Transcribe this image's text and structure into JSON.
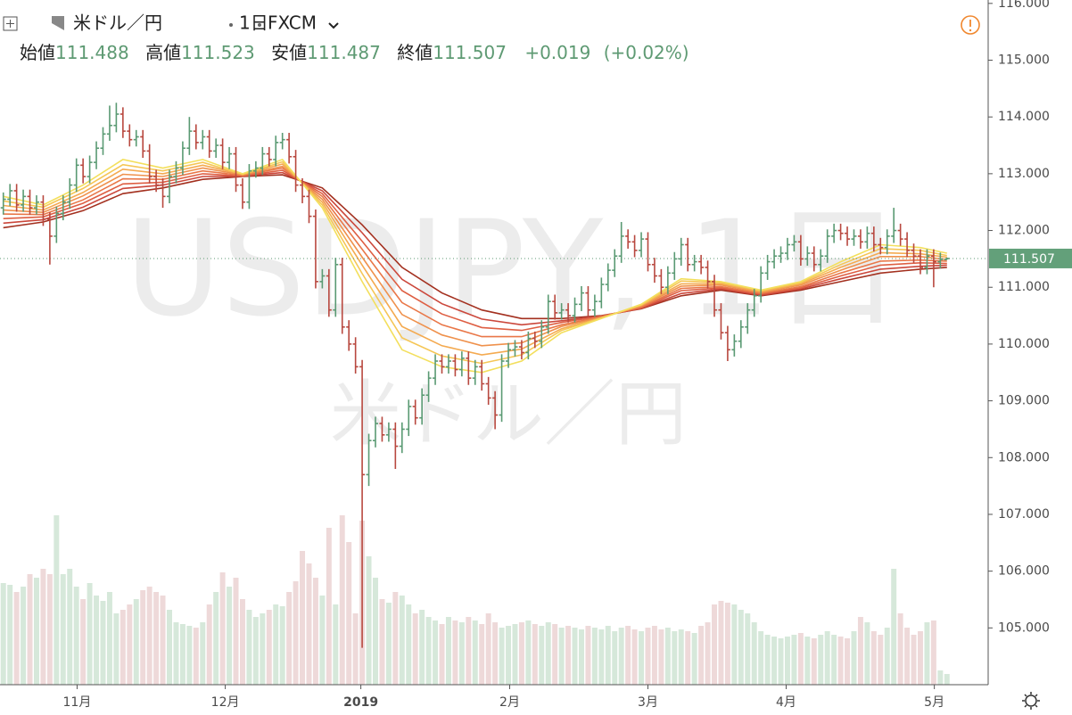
{
  "header": {
    "symbol": "米ドル／円",
    "interval": "1日",
    "exchange": "FXCM",
    "ohlc_labels": [
      "始値",
      "高値",
      "安値",
      "終値"
    ],
    "change": "+0.019",
    "change_pct": "(+0.02%)"
  },
  "watermark": {
    "main": "USDJPY, 1日",
    "sub": "米ドル／円"
  },
  "chart_data": {
    "type": "ohlc",
    "xlim": [
      -0.5,
      148.2
    ],
    "xticks": [
      {
        "value": 11.1,
        "label": "11月"
      },
      {
        "value": 33.4,
        "label": "12月"
      },
      {
        "value": 53.8,
        "label": "2019"
      },
      {
        "value": 76.2,
        "label": "2月"
      },
      {
        "value": 97,
        "label": "3月"
      },
      {
        "value": 117.8,
        "label": "4月"
      },
      {
        "value": 140.1,
        "label": "5月"
      }
    ],
    "ylim": [
      104.0,
      116.06
    ],
    "yticks": [
      {
        "value": 105,
        "label": "105.000"
      },
      {
        "value": 106,
        "label": "106.000"
      },
      {
        "value": 107,
        "label": "107.000"
      },
      {
        "value": 108,
        "label": "108.000"
      },
      {
        "value": 109,
        "label": "109.000"
      },
      {
        "value": 110,
        "label": "110.000"
      },
      {
        "value": 111,
        "label": "111.000"
      },
      {
        "value": 112,
        "label": "112.000"
      },
      {
        "value": 113,
        "label": "113.000"
      },
      {
        "value": 114,
        "label": "114.000"
      },
      {
        "value": 115,
        "label": "115.000"
      },
      {
        "value": 116,
        "label": "116.000"
      }
    ],
    "up_color": "#5a9a73",
    "down_color": "#b8483f",
    "vol_up_color": "#d6e8da",
    "vol_down_color": "#eed9d9",
    "open": [
      112.4,
      112.55,
      112.7,
      112.45,
      112.6,
      112.4,
      112.5,
      112.2,
      111.9,
      112.3,
      112.5,
      112.8,
      113.15,
      112.95,
      113.2,
      113.45,
      113.7,
      113.85,
      114.05,
      113.75,
      113.6,
      113.65,
      113.4,
      112.95,
      112.8,
      112.6,
      112.95,
      113.1,
      113.45,
      113.75,
      113.55,
      113.65,
      113.4,
      113.5,
      113.2,
      113.35,
      112.8,
      112.5,
      113.05,
      113.1,
      113.35,
      113.25,
      113.55,
      113.6,
      113.3,
      112.8,
      112.6,
      112.25,
      111.1,
      111.2,
      110.6,
      111.4,
      110.3,
      110.0,
      109.6,
      107.7,
      108.3,
      108.6,
      108.4,
      108.5,
      108.2,
      108.5,
      108.9,
      108.7,
      109.1,
      109.4,
      109.7,
      109.6,
      109.7,
      109.55,
      109.75,
      109.4,
      109.6,
      109.3,
      109.05,
      108.75,
      109.7,
      109.9,
      109.95,
      109.85,
      110.1,
      110.05,
      110.3,
      110.75,
      110.55,
      110.6,
      110.5,
      110.7,
      110.9,
      110.6,
      110.75,
      111.05,
      111.3,
      111.55,
      111.9,
      111.8,
      111.65,
      111.85,
      111.4,
      111.2,
      111.0,
      111.25,
      111.5,
      111.75,
      111.4,
      111.45,
      111.35,
      111.1,
      110.6,
      110.2,
      109.9,
      110.05,
      110.3,
      110.6,
      110.85,
      111.25,
      111.45,
      111.55,
      111.6,
      111.75,
      111.8,
      111.5,
      111.6,
      111.4,
      111.55,
      111.9,
      112.0,
      111.95,
      111.85,
      111.9,
      111.8,
      111.95,
      111.75,
      111.7,
      111.9,
      112.0,
      111.85,
      111.65,
      111.55,
      111.35,
      111.55,
      111.45,
      111.488
    ],
    "high": [
      112.67,
      112.82,
      112.82,
      112.72,
      112.72,
      112.62,
      112.62,
      112.32,
      112.42,
      112.62,
      112.92,
      113.27,
      113.27,
      113.32,
      113.57,
      113.82,
      114.2,
      114.25,
      114.17,
      113.87,
      113.77,
      113.77,
      113.52,
      113.07,
      112.92,
      113.07,
      113.22,
      113.57,
      114.0,
      113.87,
      113.77,
      113.77,
      113.62,
      113.62,
      113.47,
      113.47,
      112.92,
      113.17,
      113.22,
      113.47,
      113.47,
      113.67,
      113.72,
      113.72,
      113.42,
      112.92,
      112.72,
      112.37,
      111.32,
      111.32,
      111.52,
      111.52,
      110.42,
      110.12,
      109.72,
      108.42,
      108.72,
      108.72,
      108.62,
      108.62,
      108.62,
      109.02,
      109.02,
      109.22,
      109.52,
      109.82,
      109.82,
      109.82,
      109.82,
      109.87,
      109.87,
      109.72,
      109.72,
      109.42,
      109.17,
      109.82,
      110.02,
      110.07,
      110.07,
      110.22,
      110.22,
      110.42,
      110.87,
      110.87,
      110.72,
      110.72,
      110.82,
      111.02,
      111.02,
      110.87,
      111.17,
      111.42,
      111.67,
      112.15,
      112.02,
      111.92,
      111.97,
      111.97,
      111.52,
      111.32,
      111.37,
      111.62,
      111.87,
      111.87,
      111.57,
      111.57,
      111.47,
      111.22,
      110.72,
      110.32,
      110.17,
      110.42,
      110.72,
      110.97,
      111.37,
      111.57,
      111.67,
      111.72,
      111.87,
      111.92,
      111.92,
      111.72,
      111.72,
      111.67,
      112.02,
      112.12,
      112.12,
      112.07,
      112.02,
      112.02,
      112.07,
      112.07,
      111.87,
      112.02,
      112.4,
      112.12,
      111.97,
      111.77,
      111.67,
      111.67,
      111.67,
      111.61,
      111.523
    ],
    "low": [
      112.28,
      112.43,
      112.33,
      112.33,
      112.28,
      112.28,
      112.08,
      111.4,
      111.78,
      112.18,
      112.38,
      112.68,
      112.83,
      112.83,
      113.08,
      113.33,
      113.58,
      113.73,
      113.63,
      113.48,
      113.48,
      113.28,
      112.83,
      112.68,
      112.4,
      112.48,
      112.83,
      112.98,
      113.33,
      113.43,
      113.43,
      113.28,
      113.28,
      113.08,
      113.08,
      112.68,
      112.38,
      112.38,
      112.93,
      112.98,
      113.13,
      113.13,
      113.43,
      113.18,
      112.68,
      112.48,
      112.13,
      110.98,
      110.98,
      110.48,
      110.48,
      110.18,
      109.88,
      109.48,
      104.65,
      107.5,
      108.18,
      108.28,
      108.28,
      107.8,
      108.08,
      108.38,
      108.58,
      108.58,
      108.98,
      109.28,
      109.48,
      109.48,
      109.43,
      109.43,
      109.28,
      109.28,
      109.18,
      108.93,
      108.5,
      108.63,
      109.58,
      109.78,
      109.73,
      109.73,
      109.93,
      109.93,
      110.18,
      110.43,
      110.43,
      110.38,
      110.38,
      110.58,
      110.48,
      110.48,
      110.63,
      110.93,
      111.18,
      111.43,
      111.68,
      111.53,
      111.53,
      111.28,
      111.08,
      110.88,
      110.88,
      111.13,
      111.38,
      111.28,
      111.28,
      111.23,
      110.98,
      110.48,
      110.08,
      109.7,
      109.78,
      109.93,
      110.18,
      110.48,
      110.73,
      111.13,
      111.33,
      111.43,
      111.48,
      111.63,
      111.38,
      111.38,
      111.28,
      111.28,
      111.43,
      111.78,
      111.83,
      111.73,
      111.73,
      111.68,
      111.68,
      111.63,
      111.58,
      111.58,
      111.78,
      111.73,
      111.53,
      111.43,
      111.23,
      111.23,
      111.0,
      111.33,
      111.487
    ],
    "close": [
      112.55,
      112.7,
      112.45,
      112.6,
      112.4,
      112.5,
      112.2,
      111.9,
      112.3,
      112.5,
      112.8,
      113.15,
      112.95,
      113.2,
      113.45,
      113.7,
      113.85,
      114.05,
      113.75,
      113.6,
      113.65,
      113.4,
      112.95,
      112.8,
      112.6,
      112.95,
      113.1,
      113.45,
      113.75,
      113.55,
      113.65,
      113.4,
      113.5,
      113.2,
      113.35,
      112.8,
      112.5,
      113.05,
      113.1,
      113.35,
      113.25,
      113.55,
      113.6,
      113.3,
      112.8,
      112.6,
      112.25,
      111.1,
      111.2,
      110.6,
      111.4,
      110.3,
      110.0,
      109.6,
      107.7,
      108.3,
      108.6,
      108.4,
      108.5,
      108.2,
      108.5,
      108.9,
      108.7,
      109.1,
      109.4,
      109.7,
      109.6,
      109.7,
      109.55,
      109.75,
      109.4,
      109.6,
      109.3,
      109.05,
      108.75,
      109.7,
      109.9,
      109.95,
      109.85,
      110.1,
      110.05,
      110.3,
      110.75,
      110.55,
      110.6,
      110.5,
      110.7,
      110.9,
      110.6,
      110.75,
      111.05,
      111.3,
      111.55,
      111.9,
      111.8,
      111.65,
      111.85,
      111.4,
      111.2,
      111.0,
      111.25,
      111.5,
      111.75,
      111.4,
      111.45,
      111.35,
      111.1,
      110.6,
      110.2,
      109.9,
      110.05,
      110.3,
      110.6,
      110.85,
      111.25,
      111.45,
      111.55,
      111.6,
      111.75,
      111.8,
      111.5,
      111.6,
      111.4,
      111.55,
      111.9,
      112.0,
      111.95,
      111.85,
      111.9,
      111.8,
      111.95,
      111.75,
      111.7,
      111.9,
      112.0,
      111.85,
      111.65,
      111.55,
      111.35,
      111.55,
      111.45,
      111.49,
      111.507
    ],
    "vlim": [
      0,
      100
    ],
    "volume": [
      57,
      56,
      52,
      55,
      62,
      60,
      65,
      62,
      95,
      62,
      65,
      55,
      48,
      57,
      50,
      47,
      52,
      40,
      42,
      45,
      48,
      53,
      55,
      52,
      50,
      42,
      35,
      34,
      33,
      32,
      35,
      45,
      52,
      63,
      55,
      60,
      48,
      42,
      38,
      40,
      42,
      45,
      44,
      52,
      58,
      75,
      68,
      60,
      50,
      88,
      45,
      95,
      80,
      40,
      92,
      72,
      60,
      48,
      46,
      52,
      50,
      45,
      40,
      42,
      38,
      36,
      34,
      38,
      36,
      35,
      38,
      36,
      34,
      40,
      35,
      32,
      33,
      34,
      35,
      36,
      34,
      33,
      35,
      34,
      32,
      33,
      32,
      31,
      33,
      32,
      31,
      33,
      30,
      32,
      33,
      31,
      30,
      32,
      33,
      31,
      32,
      30,
      31,
      30,
      29,
      33,
      35,
      45,
      47,
      46,
      45,
      42,
      40,
      35,
      30,
      28,
      27,
      26,
      27,
      28,
      29,
      27,
      26,
      28,
      30,
      28,
      27,
      26,
      30,
      38,
      35,
      30,
      28,
      32,
      65,
      40,
      32,
      28,
      30,
      35,
      36,
      8,
      6
    ],
    "ma_x": [
      0,
      6,
      12,
      18,
      24,
      30,
      36,
      42,
      48,
      54,
      60,
      66,
      72,
      78,
      84,
      90,
      96,
      102,
      108,
      114,
      120,
      126,
      132,
      138,
      142
    ],
    "ma_series": [
      {
        "color": "#f3df5c",
        "values": [
          112.6,
          112.45,
          112.8,
          113.25,
          113.1,
          113.25,
          113.0,
          113.25,
          112.4,
          111.1,
          109.9,
          109.6,
          109.5,
          109.7,
          110.2,
          110.45,
          110.7,
          111.15,
          111.1,
          110.95,
          111.1,
          111.45,
          111.75,
          111.7,
          111.6
        ]
      },
      {
        "color": "#f5c655",
        "values": [
          112.52,
          112.41,
          112.74,
          113.16,
          113.05,
          113.2,
          112.99,
          113.21,
          112.45,
          111.24,
          110.11,
          109.79,
          109.66,
          109.81,
          110.24,
          110.46,
          110.69,
          111.11,
          111.08,
          110.94,
          111.08,
          111.4,
          111.68,
          111.65,
          111.56
        ]
      },
      {
        "color": "#f4aa50",
        "values": [
          112.44,
          112.36,
          112.67,
          113.08,
          113.0,
          113.15,
          112.99,
          113.17,
          112.5,
          111.39,
          110.31,
          109.97,
          109.81,
          109.91,
          110.27,
          110.46,
          110.68,
          111.06,
          111.06,
          110.92,
          111.06,
          111.35,
          111.61,
          111.59,
          111.53
        ]
      },
      {
        "color": "#ef914c",
        "values": [
          112.36,
          112.32,
          112.61,
          112.99,
          112.95,
          113.1,
          112.98,
          113.13,
          112.55,
          111.53,
          110.52,
          110.16,
          109.97,
          110.02,
          110.31,
          110.47,
          110.67,
          111.02,
          111.04,
          110.91,
          111.04,
          111.3,
          111.54,
          111.54,
          111.49
        ]
      },
      {
        "color": "#e97748",
        "values": [
          112.29,
          112.28,
          112.54,
          112.91,
          112.9,
          113.05,
          112.97,
          113.1,
          112.6,
          111.67,
          110.73,
          110.34,
          110.13,
          110.13,
          110.34,
          110.48,
          110.65,
          110.98,
          111.01,
          110.89,
          111.01,
          111.25,
          111.46,
          111.48,
          111.46
        ]
      },
      {
        "color": "#de5f43",
        "values": [
          112.21,
          112.24,
          112.48,
          112.82,
          112.85,
          113.0,
          112.96,
          113.06,
          112.65,
          111.81,
          110.94,
          110.53,
          110.29,
          110.24,
          110.38,
          110.49,
          110.64,
          110.94,
          110.99,
          110.88,
          110.99,
          111.2,
          111.39,
          111.43,
          111.42
        ]
      },
      {
        "color": "#cb473b",
        "values": [
          112.13,
          112.19,
          112.41,
          112.74,
          112.8,
          112.95,
          112.96,
          113.02,
          112.7,
          111.96,
          111.14,
          110.71,
          110.44,
          110.34,
          110.41,
          110.49,
          110.63,
          110.89,
          110.97,
          110.86,
          110.97,
          111.15,
          111.32,
          111.37,
          111.39
        ]
      },
      {
        "color": "#a3301f",
        "values": [
          112.05,
          112.15,
          112.35,
          112.65,
          112.75,
          112.9,
          112.95,
          112.98,
          112.75,
          112.1,
          111.35,
          110.9,
          110.6,
          110.45,
          110.45,
          110.5,
          110.62,
          110.85,
          110.95,
          110.85,
          110.95,
          111.1,
          111.25,
          111.32,
          111.35
        ]
      }
    ]
  }
}
